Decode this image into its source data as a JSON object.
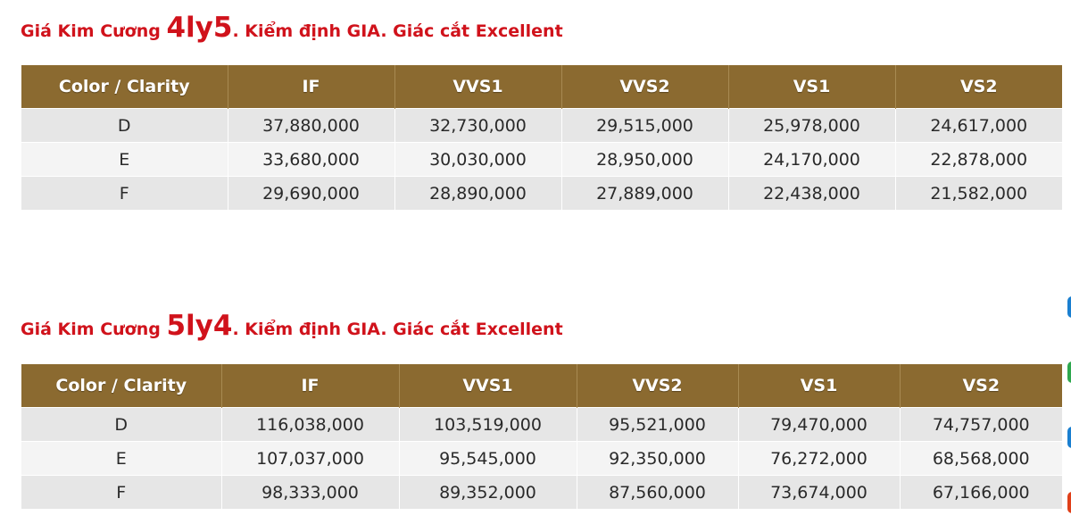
{
  "colors": {
    "title_red": "#d0121b",
    "header_brown": "#8b6a30",
    "row_gray": "#e6e6e6",
    "row_light": "#f4f4f4"
  },
  "tables": [
    {
      "title_prefix": "Giá Kim Cương ",
      "title_size": "4ly5",
      "title_suffix": ". Kiểm định GIA. Giác cắt Excellent",
      "headers": [
        "Color / Clarity",
        "IF",
        "VVS1",
        "VVS2",
        "VS1",
        "VS2"
      ],
      "rows": [
        [
          "D",
          "37,880,000",
          "32,730,000",
          "29,515,000",
          "25,978,000",
          "24,617,000"
        ],
        [
          "E",
          "33,680,000",
          "30,030,000",
          "28,950,000",
          "24,170,000",
          "22,878,000"
        ],
        [
          "F",
          "29,690,000",
          "28,890,000",
          "27,889,000",
          "22,438,000",
          "21,582,000"
        ]
      ]
    },
    {
      "title_prefix": "Giá Kim Cương ",
      "title_size": "5ly4",
      "title_suffix": ". Kiểm định GIA. Giác cắt Excellent",
      "headers": [
        "Color / Clarity",
        "IF",
        "VVS1",
        "VVS2",
        "VS1",
        "VS2"
      ],
      "rows": [
        [
          "D",
          "116,038,000",
          "103,519,000",
          "95,521,000",
          "79,470,000",
          "74,757,000"
        ],
        [
          "E",
          "107,037,000",
          "95,545,000",
          "92,350,000",
          "76,272,000",
          "68,568,000"
        ],
        [
          "F",
          "98,333,000",
          "89,352,000",
          "87,560,000",
          "73,674,000",
          "67,166,000"
        ]
      ]
    }
  ]
}
